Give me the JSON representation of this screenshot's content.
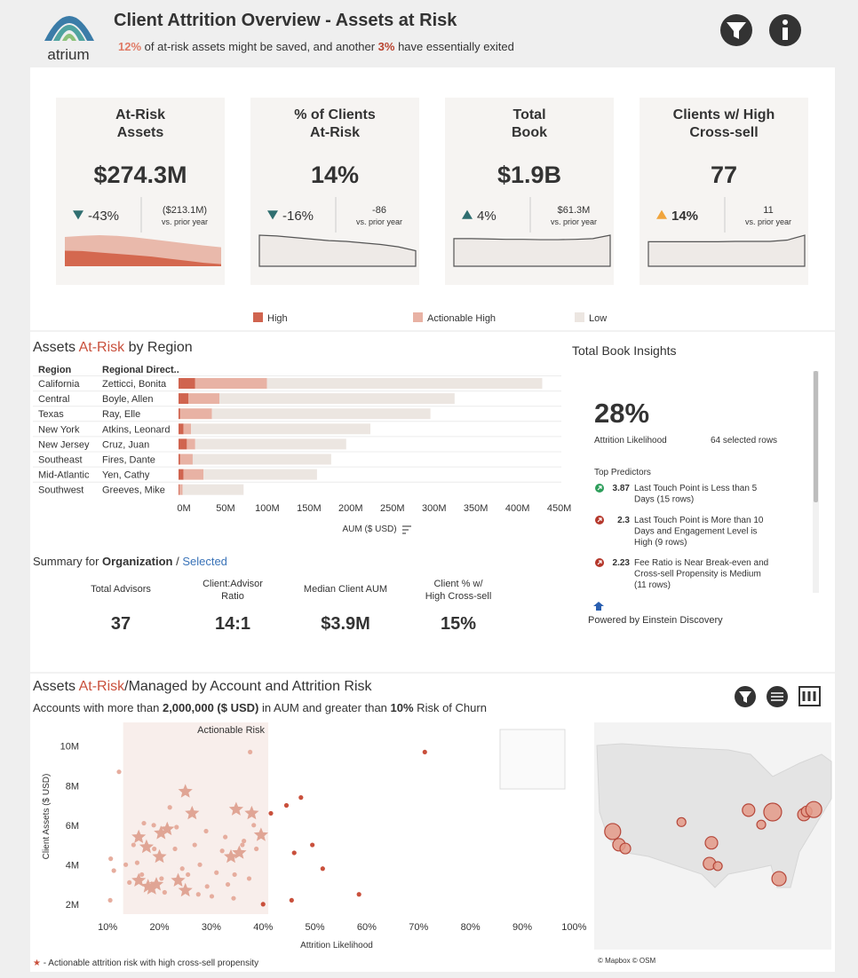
{
  "header": {
    "logo_text": "atrium",
    "title": "Client Attrition Overview - Assets at Risk",
    "subtitle": {
      "saved": "12%",
      "text1": " of at-risk assets might be saved, and another ",
      "exited": "3%",
      "text2": " have essentially exited"
    }
  },
  "kpis": [
    {
      "title": "At-Risk\nAssets",
      "value": "$274.3M",
      "value_color": "#b8432f",
      "direction": "down",
      "color": "#2f6e70",
      "change": "-43%",
      "prior_change": "($213.1M)",
      "prior_label": "vs. prior year",
      "trend": [
        {
          "color": "#e9b9ab",
          "values": [
            85,
            88,
            90,
            88,
            84,
            78,
            72,
            66,
            60,
            55
          ]
        },
        {
          "color": "#d4684f",
          "values": [
            45,
            44,
            40,
            36,
            32,
            28,
            22,
            16,
            10,
            6
          ]
        }
      ]
    },
    {
      "title": "% of Clients\nAt-Risk",
      "value": "14%",
      "value_color": "#333333",
      "direction": "down",
      "color": "#2f6e70",
      "change": "-16%",
      "prior_change": "-86",
      "prior_label": "vs. prior year",
      "trend": [
        {
          "color": "#eeeae7",
          "outline": true,
          "values": [
            80,
            78,
            74,
            70,
            66,
            64,
            60,
            56,
            50,
            40
          ]
        }
      ]
    },
    {
      "title": "Total\nBook",
      "value": "$1.9B",
      "value_color": "#333333",
      "direction": "up",
      "color": "#2f6e70",
      "change": "4%",
      "prior_change": "$61.3M",
      "prior_label": "vs. prior year",
      "trend": [
        {
          "color": "#eeeae7",
          "outline": true,
          "values": [
            80,
            80,
            79,
            78,
            78,
            77,
            77,
            78,
            80,
            90
          ]
        }
      ]
    },
    {
      "title": "Clients w/ High\nCross-sell",
      "value": "77",
      "value_color": "#333333",
      "direction": "up",
      "color": "#f0a43c",
      "change": "14%",
      "prior_change": "11",
      "prior_label": "vs. prior year",
      "trend": [
        {
          "color": "#eeeae7",
          "outline": true,
          "values": [
            75,
            75,
            75,
            75,
            75,
            76,
            76,
            76,
            80,
            95
          ]
        }
      ]
    }
  ],
  "summary": {
    "prefix": "Summary for ",
    "scope": "Organization",
    "separator": " / ",
    "selection": "Selected",
    "metrics": [
      {
        "label": "Total Advisors",
        "value": "37"
      },
      {
        "label": "Client:Advisor\nRatio",
        "value": "14:1"
      },
      {
        "label": "Median Client AUM",
        "value": "$3.9M"
      },
      {
        "label": "Client % w/\nHigh Cross-sell",
        "value": "15%"
      }
    ]
  },
  "insights": {
    "title": "Total Book Insights",
    "value": "28%",
    "value_label": "Attrition Likelihood",
    "rows": "64 selected rows",
    "predictors_title": "Top Predictors",
    "predictors": [
      {
        "direction": "up",
        "color": "#2e9e5b",
        "value": "3.87",
        "text": "Last Touch Point is Less than 5\nDays (15 rows)"
      },
      {
        "direction": "down",
        "color": "#b5382c",
        "value": "2.3",
        "text": "Last Touch Point is More than 10\nDays and Engagement Level is\nHigh (9 rows)"
      },
      {
        "direction": "down",
        "color": "#b5382c",
        "value": "2.23",
        "text": "Fee Ratio is Near Break-even and\nCross-sell Propensity is Medium\n(11 rows)"
      }
    ],
    "footer": "Powered by Einstein Discovery"
  },
  "chart_data": [
    {
      "type": "bar",
      "orientation": "horizontal",
      "stacked": true,
      "title": {
        "text1": "Assets ",
        "highlight": "At-Risk",
        "text2": " by Region"
      },
      "columns": [
        "Region",
        "Regional Direct.."
      ],
      "categories": [
        "California",
        "Central",
        "Texas",
        "New York",
        "New Jersey",
        "Southeast",
        "Mid-Atlantic",
        "Southwest"
      ],
      "directors": [
        "Zetticci, Bonita",
        "Boyle, Allen",
        "Ray, Elle",
        "Atkins, Leonard",
        "Cruz, Juan",
        "Fires, Dante",
        "Yen, Cathy",
        "Greeves, Mike"
      ],
      "series": [
        {
          "name": "High",
          "color": "#d0644f",
          "values": [
            20000000,
            12000000,
            2000000,
            6000000,
            10000000,
            2000000,
            6000000,
            1000000
          ]
        },
        {
          "name": "Actionable High",
          "color": "#e8b2a4",
          "values": [
            86000000,
            37000000,
            38000000,
            9000000,
            10000000,
            15000000,
            24000000,
            4000000
          ]
        },
        {
          "name": "Low",
          "color": "#ece6e1",
          "values": [
            330000000,
            282000000,
            262000000,
            215000000,
            181000000,
            166000000,
            136000000,
            73000000
          ]
        }
      ],
      "xlim": [
        0,
        460000000
      ],
      "xticks": [
        {
          "value": 0,
          "label": "0M"
        },
        {
          "value": 50000000,
          "label": "50M"
        },
        {
          "value": 100000000,
          "label": "100M"
        },
        {
          "value": 150000000,
          "label": "150M"
        },
        {
          "value": 200000000,
          "label": "200M"
        },
        {
          "value": 250000000,
          "label": "250M"
        },
        {
          "value": 300000000,
          "label": "300M"
        },
        {
          "value": 350000000,
          "label": "350M"
        },
        {
          "value": 400000000,
          "label": "400M"
        },
        {
          "value": 450000000,
          "label": "450M"
        }
      ],
      "xlabel": "AUM ($ USD)"
    },
    {
      "type": "scatter",
      "title": {
        "text1": "Assets ",
        "highlight": "At-Risk",
        "text2": "/Managed by Account and Attrition Risk"
      },
      "subtitle": {
        "text1": "Accounts with more than ",
        "amount": "2,000,000 ($ USD)",
        "text2": " in AUM and greater than ",
        "risk": "10%",
        "text3": " Risk of Churn"
      },
      "band": {
        "label": "Actionable Risk",
        "range": [
          13,
          41
        ],
        "color": "#f8eeeb",
        "label_color": "#c9503c"
      },
      "series": [
        {
          "marker": "star",
          "color": "#e0a595",
          "x": [
            25.0,
            26.3,
            34.8,
            37.8,
            39.6,
            16.0,
            20.3,
            21.5,
            17.5,
            20.0,
            33.8,
            35.4,
            16.0,
            19.4,
            23.6,
            25.0,
            17.8,
            18.5
          ],
          "values": [
            7700000,
            6600000,
            6800000,
            6600000,
            5500000,
            5400000,
            5600000,
            5800000,
            4900000,
            4400000,
            4400000,
            4600000,
            3200000,
            3000000,
            3200000,
            2700000,
            2900000,
            2800000
          ]
        },
        {
          "marker": "circle",
          "color": "#e6ad9e",
          "x": [
            37.5,
            12.2,
            22,
            23.3,
            17,
            18.9,
            26.8,
            29,
            32.7,
            36,
            36.3,
            15,
            15.7,
            13.5,
            19,
            23,
            32.1,
            38.7,
            27.8,
            31,
            34.5,
            37.3,
            25.5,
            20.4,
            14.2,
            16.6,
            21,
            29.2,
            33.2,
            27.5,
            30.1,
            34.3,
            10.6,
            11.2,
            10.5,
            24.4,
            38.2
          ],
          "values": [
            9700000,
            8700000,
            6900000,
            5900000,
            6100000,
            6000000,
            5000000,
            5700000,
            5400000,
            5000000,
            5200000,
            5000000,
            4100000,
            4000000,
            4800000,
            4800000,
            4700000,
            4800000,
            4000000,
            3600000,
            3500000,
            3300000,
            3500000,
            3300000,
            3100000,
            3500000,
            2600000,
            2900000,
            3000000,
            2500000,
            2400000,
            2300000,
            4300000,
            3700000,
            2200000,
            3800000,
            6000000
          ]
        },
        {
          "marker": "circle",
          "color": "#c9503c",
          "x": [
            71.2,
            47.3,
            44.5,
            41.5,
            49.5,
            46,
            51.5,
            58.5,
            45.5,
            40
          ],
          "values": [
            9700000,
            7400000,
            7000000,
            6600000,
            5000000,
            4600000,
            3800000,
            2500000,
            2200000,
            2000000
          ]
        }
      ],
      "xlim": [
        5,
        102
      ],
      "xticks": [
        {
          "value": 10,
          "label": "10%"
        },
        {
          "value": 20,
          "label": "20%"
        },
        {
          "value": 30,
          "label": "30%"
        },
        {
          "value": 40,
          "label": "40%"
        },
        {
          "value": 50,
          "label": "50%"
        },
        {
          "value": 60,
          "label": "60%"
        },
        {
          "value": 70,
          "label": "70%"
        },
        {
          "value": 80,
          "label": "80%"
        },
        {
          "value": 90,
          "label": "90%"
        },
        {
          "value": 100,
          "label": "100%"
        }
      ],
      "ylim": [
        1500000,
        11200000
      ],
      "yticks": [
        {
          "value": 2000000,
          "label": "2M"
        },
        {
          "value": 4000000,
          "label": "4M"
        },
        {
          "value": 6000000,
          "label": "6M"
        },
        {
          "value": 8000000,
          "label": "8M"
        },
        {
          "value": 10000000,
          "label": "10M"
        }
      ],
      "xlabel": "Attrition Likelihood",
      "ylabel": "Client Assets ($ USD)",
      "footnote": {
        "mark": "★",
        "text": " - Actionable attrition risk with high cross-sell propensity"
      }
    },
    {
      "type": "map",
      "color": "#e49a88",
      "stroke": "#b5473a",
      "credits": "© Mapbox © OSM",
      "points": [
        {
          "lon": -121.0,
          "lat": 33.9,
          "value": 81
        },
        {
          "lon": -119.4,
          "lat": 31.8,
          "value": 49
        },
        {
          "lon": -117.8,
          "lat": 31.2,
          "value": 36
        },
        {
          "lon": -103.6,
          "lat": 35.4,
          "value": 25
        },
        {
          "lon": -96.0,
          "lat": 32.1,
          "value": 49
        },
        {
          "lon": -96.5,
          "lat": 28.8,
          "value": 49
        },
        {
          "lon": -94.4,
          "lat": 28.4,
          "value": 25
        },
        {
          "lon": -86.6,
          "lat": 37.3,
          "value": 49
        },
        {
          "lon": -83.4,
          "lat": 35.0,
          "value": 25
        },
        {
          "lon": -80.5,
          "lat": 37.0,
          "value": 100
        },
        {
          "lon": -78.9,
          "lat": 26.4,
          "value": 64
        },
        {
          "lon": -72.6,
          "lat": 36.6,
          "value": 49
        },
        {
          "lon": -71.9,
          "lat": 37.1,
          "value": 36
        },
        {
          "lon": -70.1,
          "lat": 37.4,
          "value": 81
        }
      ]
    }
  ]
}
